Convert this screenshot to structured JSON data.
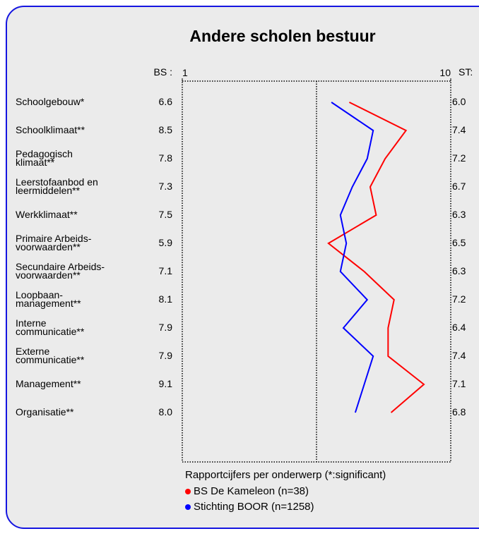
{
  "chart_data": {
    "type": "profile-line",
    "title": "Andere scholen bestuur",
    "xlabel": "Rapportcijfers per onderwerp (*:significant)",
    "left_column_label": "BS :",
    "right_column_label": "ST:",
    "categories": [
      "Schoolgebouw*",
      "Schoolklimaat**",
      "Pedagogisch\nklimaat**",
      "Leerstofaanbod en\nleermiddelen**",
      "Werkklimaat**",
      "Primaire Arbeids-\nvoorwaarden**",
      "Secundaire Arbeids-\nvoorwaarden**",
      "Loopbaan-\nmanagement**",
      "Interne\ncommunicatie**",
      "Externe\ncommunicatie**",
      "Management**",
      "Organisatie**"
    ],
    "series": [
      {
        "name": "BS De Kameleon (n=38)",
        "color": "#ff0000",
        "values": [
          6.6,
          8.5,
          7.8,
          7.3,
          7.5,
          5.9,
          7.1,
          8.1,
          7.9,
          7.9,
          9.1,
          8.0
        ],
        "value_labels": [
          "6.6",
          "8.5",
          "7.8",
          "7.3",
          "7.5",
          "5.9",
          "7.1",
          "8.1",
          "7.9",
          "7.9",
          "9.1",
          "8.0"
        ]
      },
      {
        "name": "Stichting BOOR (n=1258)",
        "color": "#0000ff",
        "values": [
          6.0,
          7.4,
          7.2,
          6.7,
          6.3,
          6.5,
          6.3,
          7.2,
          6.4,
          7.4,
          7.1,
          6.8
        ],
        "value_labels": [
          "6.0",
          "7.4",
          "7.2",
          "6.7",
          "6.3",
          "6.5",
          "6.3",
          "7.2",
          "6.4",
          "7.4",
          "7.1",
          "6.8"
        ]
      }
    ],
    "xlim": [
      1,
      10
    ],
    "xticks": [
      1,
      10
    ],
    "midline": 5.5
  }
}
